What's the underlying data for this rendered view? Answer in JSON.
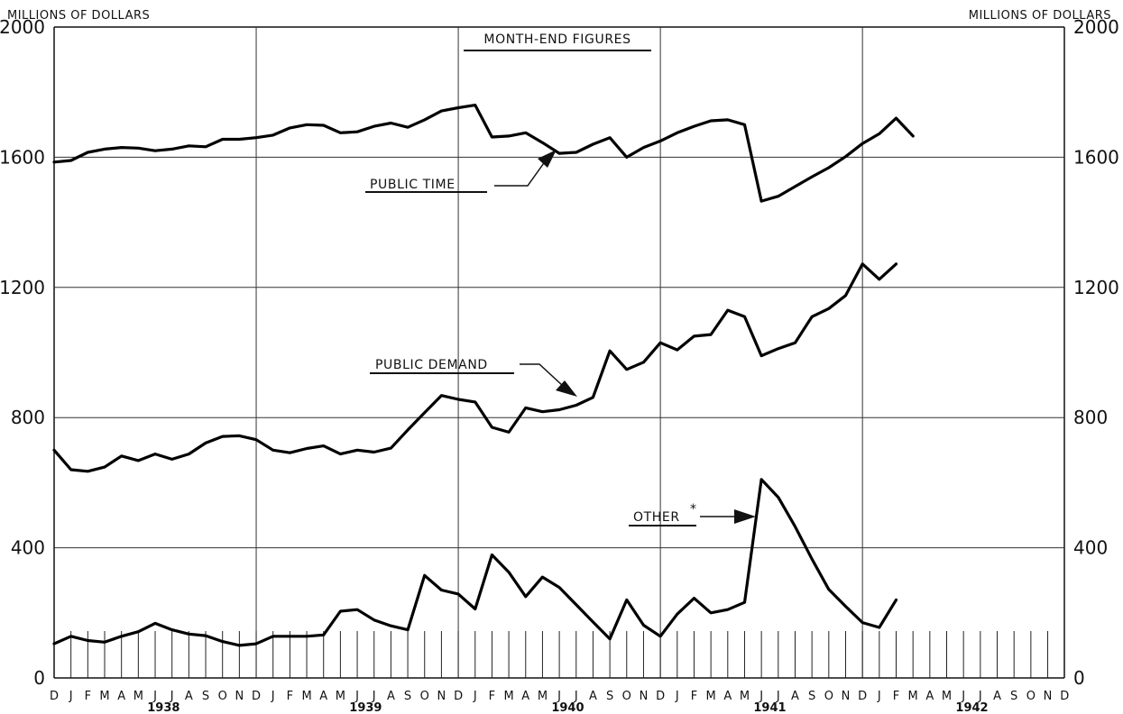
{
  "chart_data": {
    "type": "line",
    "title": "MONTH-END FIGURES",
    "ylabel_left": "MILLIONS OF DOLLARS",
    "ylabel_right": "MILLIONS OF DOLLARS",
    "ylim": [
      0,
      2000
    ],
    "yticks": [
      "0",
      "400",
      "800",
      "1200",
      "1600",
      "2000"
    ],
    "grid": true,
    "x_month_labels": [
      "D",
      "J",
      "F",
      "M",
      "A",
      "M",
      "J",
      "J",
      "A",
      "S",
      "O",
      "N",
      "D",
      "J",
      "F",
      "M",
      "A",
      "M",
      "J",
      "J",
      "A",
      "S",
      "O",
      "N",
      "D",
      "J",
      "F",
      "M",
      "A",
      "M",
      "J",
      "J",
      "A",
      "S",
      "O",
      "N",
      "D",
      "J",
      "F",
      "M",
      "A",
      "M",
      "J",
      "J",
      "A",
      "S",
      "O",
      "N",
      "D",
      "J",
      "F",
      "M",
      "A",
      "M",
      "J",
      "J",
      "A",
      "S",
      "O",
      "N",
      "D"
    ],
    "x_year_labels": [
      {
        "label": "1938",
        "month_index": 6.5
      },
      {
        "label": "1939",
        "month_index": 18.5
      },
      {
        "label": "1940",
        "month_index": 30.5
      },
      {
        "label": "1941",
        "month_index": 42.5
      },
      {
        "label": "1942",
        "month_index": 54.5
      }
    ],
    "series": [
      {
        "name": "PUBLIC TIME",
        "values": [
          1585,
          1590,
          1615,
          1625,
          1630,
          1628,
          1620,
          1625,
          1635,
          1632,
          1655,
          1655,
          1660,
          1668,
          1690,
          1700,
          1698,
          1675,
          1678,
          1695,
          1705,
          1692,
          1715,
          1742,
          1752,
          1760,
          1662,
          1665,
          1675,
          1645,
          1612,
          1615,
          1640,
          1660,
          1600,
          1630,
          1650,
          1675,
          1695,
          1712,
          1715,
          1700,
          1465,
          1480,
          1510,
          1540,
          1568,
          1602,
          1642,
          1672,
          1720,
          1665
        ]
      },
      {
        "name": "PUBLIC DEMAND",
        "values": [
          700,
          640,
          635,
          648,
          682,
          668,
          688,
          672,
          688,
          722,
          742,
          744,
          732,
          700,
          692,
          705,
          713,
          688,
          700,
          694,
          706,
          762,
          815,
          868,
          856,
          848,
          770,
          755,
          830,
          818,
          824,
          838,
          862,
          1005,
          948,
          970,
          1030,
          1008,
          1050,
          1055,
          1130,
          1110,
          990,
          1012,
          1030,
          1110,
          1135,
          1175,
          1272,
          1225,
          1272
        ]
      },
      {
        "name": "OTHER *",
        "values": [
          105,
          128,
          115,
          110,
          128,
          142,
          168,
          148,
          135,
          130,
          112,
          100,
          105,
          128,
          128,
          128,
          132,
          205,
          210,
          178,
          160,
          148,
          315,
          270,
          258,
          212,
          378,
          325,
          250,
          310,
          278,
          225,
          172,
          120,
          240,
          162,
          128,
          196,
          245,
          200,
          210,
          232,
          610,
          555,
          465,
          365,
          272,
          220,
          170,
          155,
          240
        ]
      }
    ],
    "annotations": {
      "public_time": "PUBLIC TIME",
      "public_demand": "PUBLIC DEMAND",
      "other": "OTHER",
      "other_mark": "*"
    }
  }
}
